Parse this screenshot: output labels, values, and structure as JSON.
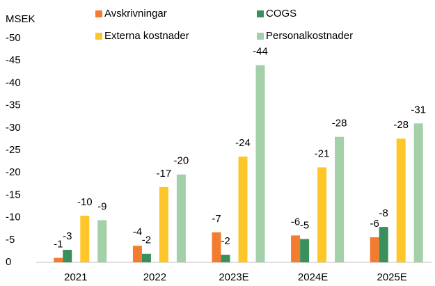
{
  "chart_data": {
    "type": "bar",
    "y_label": "MSEK",
    "categories": [
      "2021",
      "2022",
      "2023E",
      "2024E",
      "2025E"
    ],
    "series": [
      {
        "name": "Avskrivningar",
        "color": "#f47c30",
        "values": [
          -1.0,
          -3.7,
          -6.7,
          -6.0,
          -5.6
        ],
        "value_labels": [
          "-1",
          "-4",
          "-7",
          "-6",
          "-6"
        ]
      },
      {
        "name": "COGS",
        "color": "#3a8f5a",
        "values": [
          -2.8,
          -1.9,
          -1.7,
          -5.2,
          -7.9
        ],
        "value_labels": [
          "-3",
          "-2",
          "-2",
          "-5",
          "-8"
        ]
      },
      {
        "name": "Externa kostnader",
        "color": "#ffc629",
        "values": [
          -10.4,
          -16.8,
          -23.6,
          -21.2,
          -27.6
        ],
        "value_labels": [
          "-10",
          "-17",
          "-24",
          "-21",
          "-28"
        ]
      },
      {
        "name": "Personalkostnader",
        "color": "#a3cfa9",
        "values": [
          -9.4,
          -19.6,
          -44.0,
          -28.0,
          -31.0
        ],
        "value_labels": [
          "-9",
          "-20",
          "-44",
          "-28",
          "-31"
        ]
      }
    ],
    "ylim": [
      0,
      -50
    ],
    "yticks": [
      0,
      -5,
      -10,
      -15,
      -20,
      -25,
      -30,
      -35,
      -40,
      -45,
      -50
    ]
  }
}
